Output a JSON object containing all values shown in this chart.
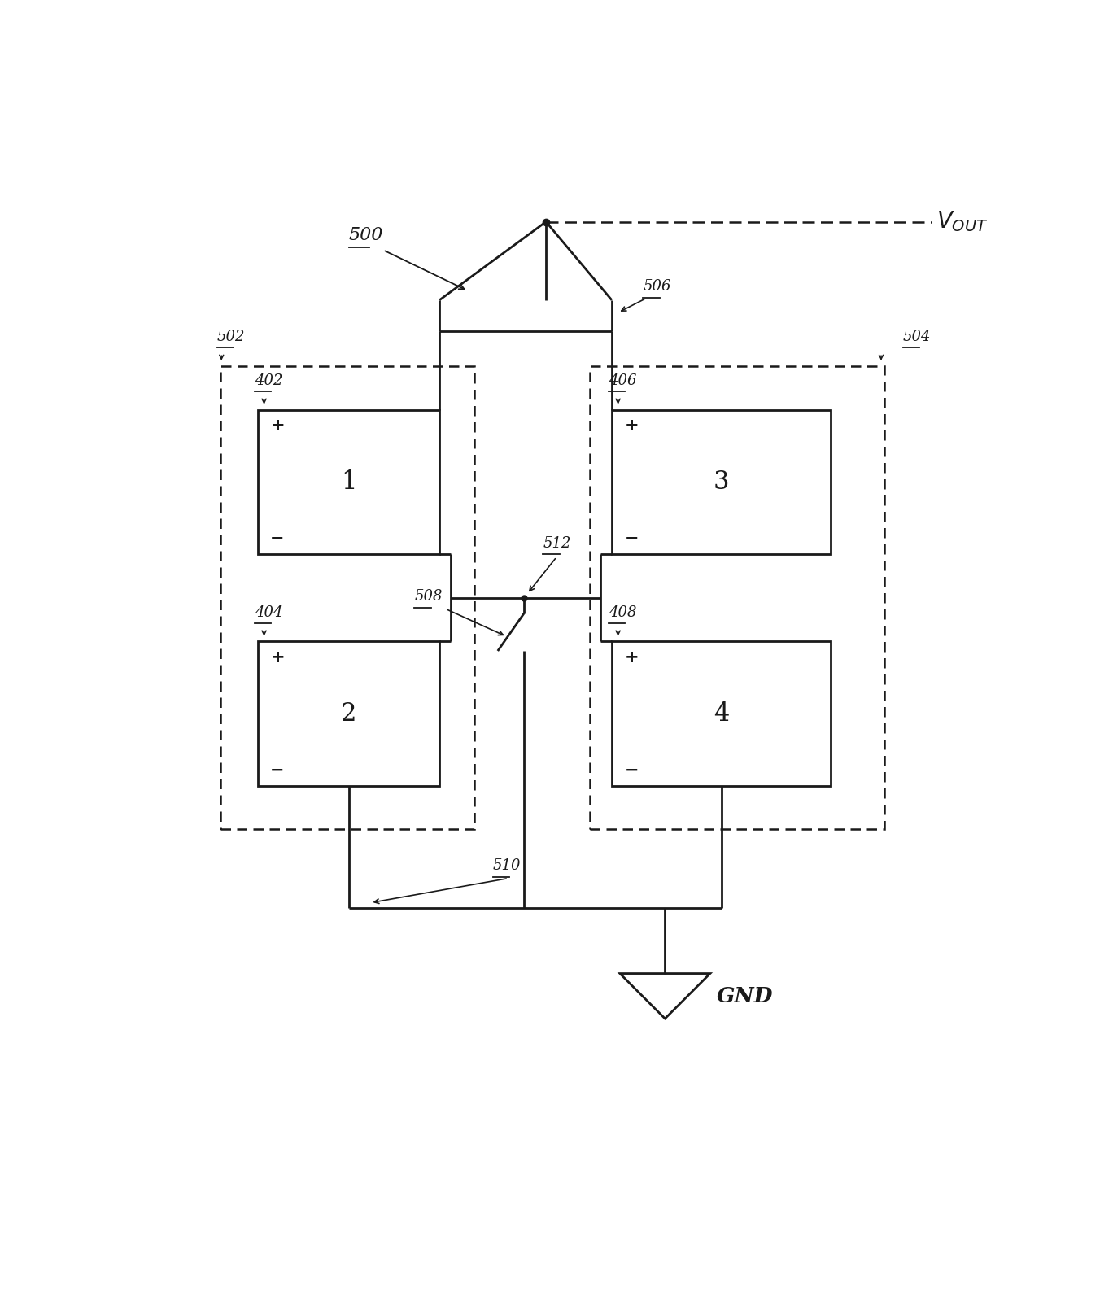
{
  "fig_width": 13.68,
  "fig_height": 16.04,
  "bg_color": "#ffffff",
  "lc": "#1a1a1a",
  "lw": 2.0,
  "dlw": 1.8,
  "cell_labels": [
    "1",
    "2",
    "3",
    "4"
  ],
  "ref_500": "500",
  "ref_502": "502",
  "ref_504": "504",
  "ref_506": "506",
  "ref_508": "508",
  "ref_510": "510",
  "ref_512": "512",
  "ref_402": "402",
  "ref_404": "404",
  "ref_406": "406",
  "ref_408": "408",
  "label_gnd": "GND",
  "label_vout": "$V_{OUT}$",
  "plus": "+",
  "minus": "−"
}
